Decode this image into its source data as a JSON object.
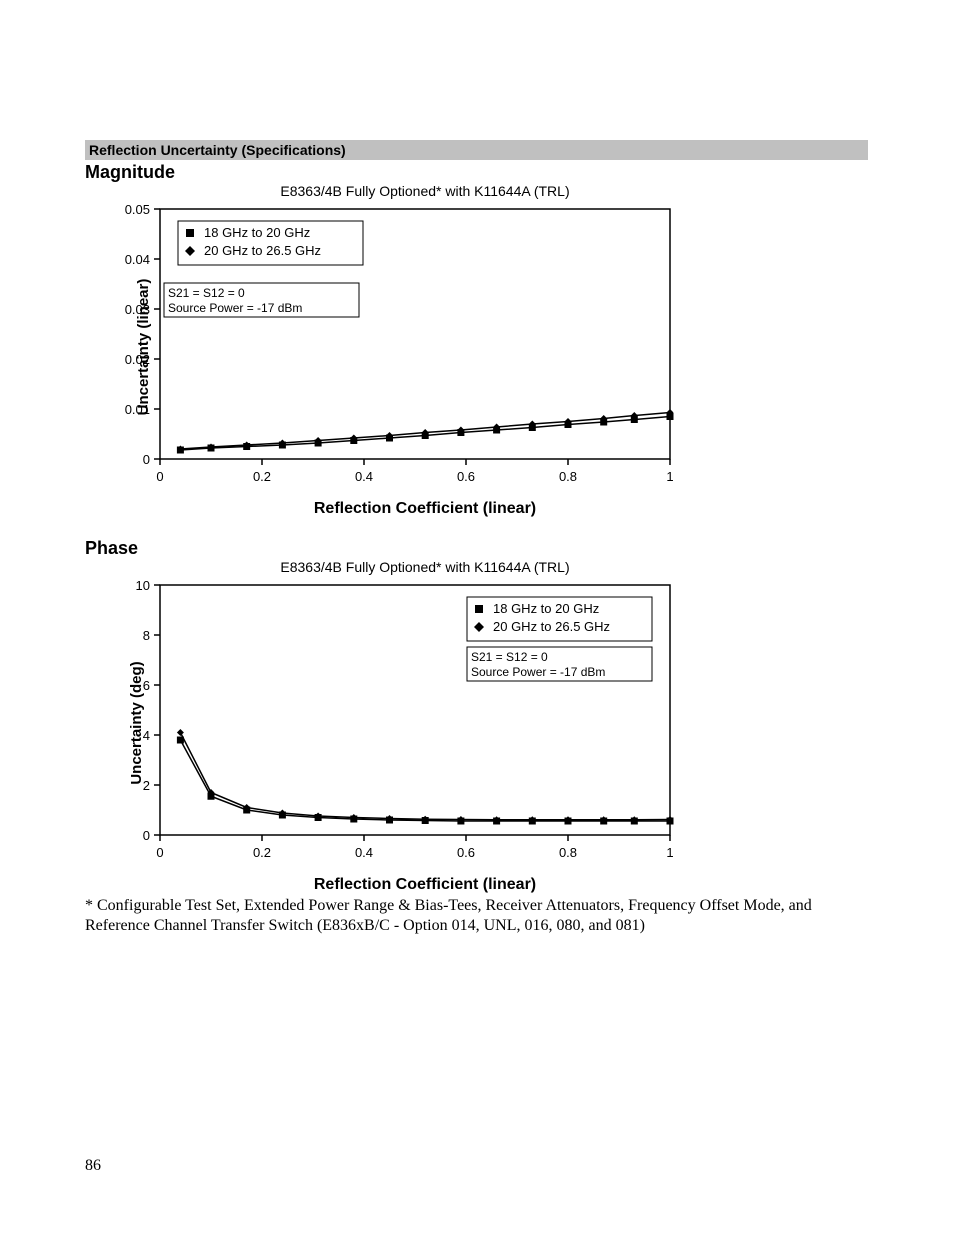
{
  "section_header": "Reflection Uncertainty (Specifications)",
  "footnote": " * Configurable Test Set, Extended Power Range & Bias-Tees, Receiver Attenuators, Frequency Offset Mode, and Reference Channel Transfer Switch (E836xB/C - Option 014, UNL, 016, 080, and 081)",
  "page_number": "86",
  "chart1": {
    "type": "line",
    "title": "Magnitude",
    "supertitle": "E8363/4B Fully Optioned* with K11644A (TRL)",
    "xlabel": "Reflection Coefficient (linear)",
    "ylabel": "Uncertainty (linear)",
    "xlim": [
      0,
      1
    ],
    "ylim": [
      0,
      0.05
    ],
    "xticks": [
      0,
      0.2,
      0.4,
      0.6,
      0.8,
      1
    ],
    "yticks": [
      0,
      0.01,
      0.02,
      0.03,
      0.04,
      0.05
    ],
    "xtick_labels": [
      "0",
      "0.2",
      "0.4",
      "0.6",
      "0.8",
      "1"
    ],
    "ytick_labels": [
      "0",
      "0.01",
      "0.02",
      "0.03",
      "0.04",
      "0.05"
    ],
    "legend_pos": "top-left-inside",
    "annotation_box": [
      "S21 = S12 = 0",
      "Source Power = -17 dBm"
    ],
    "series": [
      {
        "label": "18 GHz to 20 GHz",
        "marker": "square",
        "color": "#000000",
        "x": [
          0.04,
          0.1,
          0.17,
          0.24,
          0.31,
          0.38,
          0.45,
          0.52,
          0.59,
          0.66,
          0.73,
          0.8,
          0.87,
          0.93,
          1.0
        ],
        "y": [
          0.0018,
          0.0022,
          0.0025,
          0.0028,
          0.0032,
          0.0037,
          0.0042,
          0.0047,
          0.0053,
          0.0058,
          0.0063,
          0.0069,
          0.0074,
          0.0079,
          0.0085
        ]
      },
      {
        "label": "20 GHz to 26.5 GHz",
        "marker": "diamond",
        "color": "#000000",
        "x": [
          0.04,
          0.1,
          0.17,
          0.24,
          0.31,
          0.38,
          0.45,
          0.52,
          0.59,
          0.66,
          0.73,
          0.8,
          0.87,
          0.93,
          1.0
        ],
        "y": [
          0.002,
          0.0024,
          0.0028,
          0.0032,
          0.0037,
          0.0042,
          0.0047,
          0.0053,
          0.0058,
          0.0064,
          0.007,
          0.0075,
          0.0081,
          0.0087,
          0.0093
        ]
      }
    ],
    "plot_bg": "#ffffff",
    "axis_color": "#000000",
    "tick_fontsize": 13,
    "label_fontsize": 15,
    "line_width": 1.5,
    "marker_size": 7
  },
  "chart2": {
    "type": "line",
    "title": "Phase",
    "supertitle": "E8363/4B Fully Optioned* with K11644A (TRL)",
    "xlabel": "Reflection Coefficient (linear)",
    "ylabel": "Uncertainty (deg)",
    "xlim": [
      0,
      1
    ],
    "ylim": [
      0,
      10
    ],
    "xticks": [
      0,
      0.2,
      0.4,
      0.6,
      0.8,
      1
    ],
    "yticks": [
      0,
      2,
      4,
      6,
      8,
      10
    ],
    "xtick_labels": [
      "0",
      "0.2",
      "0.4",
      "0.6",
      "0.8",
      "1"
    ],
    "ytick_labels": [
      "0",
      "2",
      "4",
      "6",
      "8",
      "10"
    ],
    "legend_pos": "top-right-inside",
    "annotation_box": [
      "S21 = S12 = 0",
      "Source Power = -17 dBm"
    ],
    "series": [
      {
        "label": "18 GHz to 20 GHz",
        "marker": "square",
        "color": "#000000",
        "x": [
          0.04,
          0.1,
          0.17,
          0.24,
          0.31,
          0.38,
          0.45,
          0.52,
          0.59,
          0.66,
          0.73,
          0.8,
          0.87,
          0.93,
          1.0
        ],
        "y": [
          3.8,
          1.55,
          1.0,
          0.8,
          0.7,
          0.64,
          0.6,
          0.58,
          0.56,
          0.56,
          0.56,
          0.56,
          0.56,
          0.56,
          0.56
        ]
      },
      {
        "label": "20 GHz to 26.5 GHz",
        "marker": "diamond",
        "color": "#000000",
        "x": [
          0.04,
          0.1,
          0.17,
          0.24,
          0.31,
          0.38,
          0.45,
          0.52,
          0.59,
          0.66,
          0.73,
          0.8,
          0.87,
          0.93,
          1.0
        ],
        "y": [
          4.1,
          1.7,
          1.1,
          0.88,
          0.76,
          0.7,
          0.66,
          0.63,
          0.62,
          0.61,
          0.61,
          0.61,
          0.61,
          0.61,
          0.62
        ]
      }
    ],
    "plot_bg": "#ffffff",
    "axis_color": "#000000",
    "tick_fontsize": 13,
    "label_fontsize": 15,
    "line_width": 1.5,
    "marker_size": 7
  }
}
